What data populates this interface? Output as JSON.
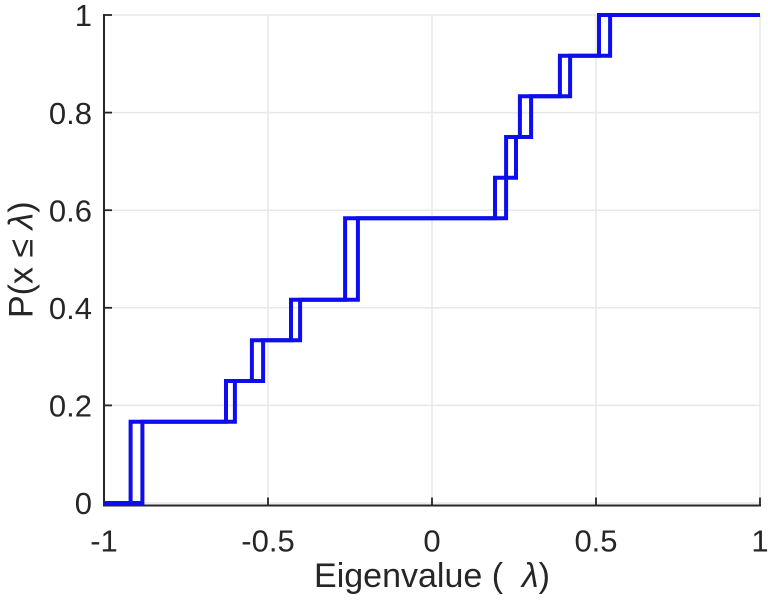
{
  "figure": {
    "background": "#ffffff",
    "axes_color": "#262626",
    "grid_color": "#e8e8e8",
    "line_color": "#0d0dee",
    "line_width": 4
  },
  "chart_data": {
    "type": "line",
    "subtype": "empirical-cdf-stairs",
    "title": "",
    "xlabel": "Eigenvalue ( λ)",
    "ylabel": "P(x ≤ λ)",
    "xlabel_parts": {
      "prefix": "Eigenvalue (  ",
      "symbol": "λ",
      "suffix": ")"
    },
    "ylabel_parts": {
      "prefix": "P(x ≤ ",
      "symbol": "λ",
      "suffix": ")"
    },
    "xlim": [
      -1,
      1
    ],
    "ylim": [
      0,
      1
    ],
    "x_ticks": [
      -1,
      -0.5,
      0,
      0.5,
      1
    ],
    "x_tick_labels": [
      "-1",
      "-0.5",
      "0",
      "0.5",
      "1"
    ],
    "y_ticks": [
      0,
      0.2,
      0.4,
      0.6,
      0.8,
      1
    ],
    "y_tick_labels": [
      "0",
      "0.2",
      "0.4",
      "0.6",
      "0.8",
      "1"
    ],
    "grid": true,
    "legend": null,
    "n_samples": 12,
    "series": [
      {
        "name": "ecdf-curve-1",
        "eigenvalues": [
          -0.919,
          -0.919,
          -0.628,
          -0.549,
          -0.43,
          -0.265,
          -0.265,
          0.192,
          0.226,
          0.268,
          0.39,
          0.509
        ]
      },
      {
        "name": "ecdf-curve-2",
        "eigenvalues": [
          -0.883,
          -0.883,
          -0.601,
          -0.515,
          -0.402,
          -0.226,
          -0.226,
          0.226,
          0.256,
          0.302,
          0.421,
          0.543
        ]
      }
    ]
  }
}
